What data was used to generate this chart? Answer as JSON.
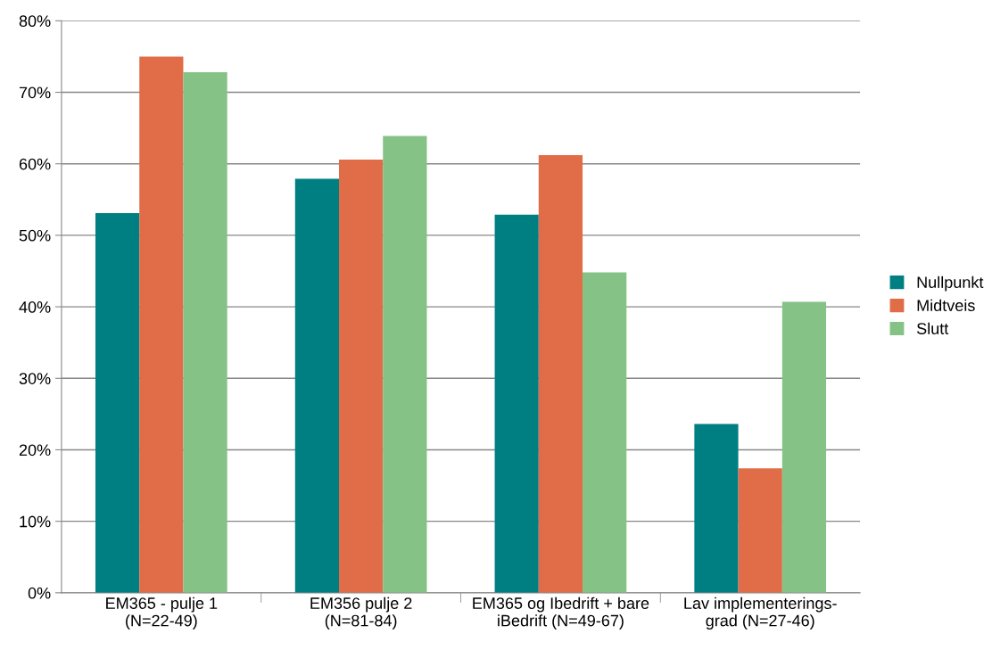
{
  "chart_data": {
    "type": "bar",
    "categories": [
      "EM365 - pulje 1\n(N=22-49)",
      "EM356 pulje 2\n(N=81-84)",
      "EM365 og Ibedrift + bare\niBedrift (N=49-67)",
      "Lav implementerings-\ngrad (N=27-46)"
    ],
    "series": [
      {
        "name": "Nullpunkt",
        "color": "#007f83",
        "values": [
          53.1,
          57.9,
          52.9,
          23.6
        ]
      },
      {
        "name": "Midtveis",
        "color": "#e06c48",
        "values": [
          75.0,
          60.6,
          61.2,
          17.4
        ]
      },
      {
        "name": "Slutt",
        "color": "#85c285",
        "values": [
          72.8,
          63.9,
          44.8,
          40.7
        ]
      }
    ],
    "ylim": [
      0,
      80
    ],
    "yticks": [
      {
        "value": 0,
        "label": "0%"
      },
      {
        "value": 10,
        "label": "10%"
      },
      {
        "value": 20,
        "label": "20%"
      },
      {
        "value": 30,
        "label": "30%"
      },
      {
        "value": 40,
        "label": "40%"
      },
      {
        "value": 50,
        "label": "50%"
      },
      {
        "value": 60,
        "label": "60%"
      },
      {
        "value": 70,
        "label": "70%"
      },
      {
        "value": 80,
        "label": "80%"
      }
    ],
    "grid": "y",
    "legend": "right"
  }
}
